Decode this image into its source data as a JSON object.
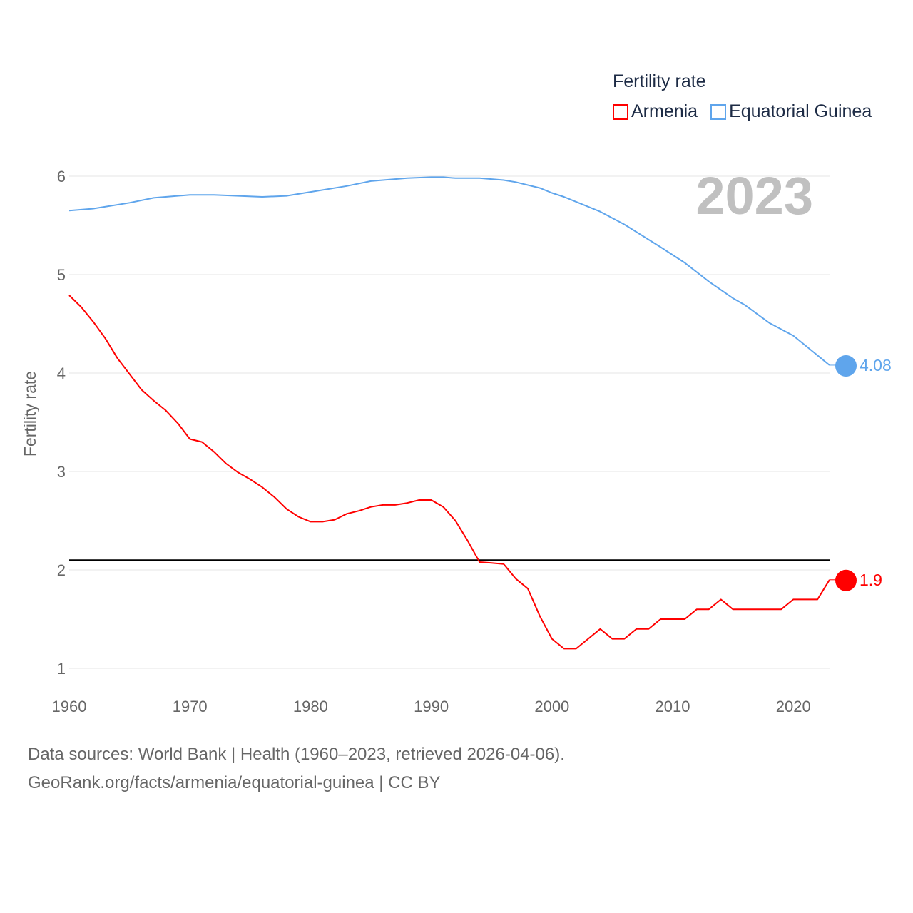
{
  "chart_data": {
    "type": "line",
    "title": "Fertility rate",
    "ylabel": "Fertility rate",
    "xlabel": "",
    "year_label": "2023",
    "xlim": [
      1960,
      2023
    ],
    "ylim": [
      1,
      6
    ],
    "x_ticks": [
      1960,
      1970,
      1980,
      1990,
      2000,
      2010,
      2020
    ],
    "y_ticks": [
      1,
      2,
      3,
      4,
      5,
      6
    ],
    "grid": true,
    "legend_position": "top-right",
    "reference_line": {
      "y": 2.1,
      "color": "#000000"
    },
    "series": [
      {
        "name": "Armenia",
        "color": "#ff0000",
        "end_label": "1.9",
        "x": [
          1960,
          1961,
          1962,
          1963,
          1964,
          1965,
          1966,
          1967,
          1968,
          1969,
          1970,
          1971,
          1972,
          1973,
          1974,
          1975,
          1976,
          1977,
          1978,
          1979,
          1980,
          1981,
          1982,
          1983,
          1984,
          1985,
          1986,
          1987,
          1988,
          1989,
          1990,
          1991,
          1992,
          1993,
          1994,
          1995,
          1996,
          1997,
          1998,
          1999,
          2000,
          2001,
          2002,
          2003,
          2004,
          2005,
          2006,
          2007,
          2008,
          2009,
          2010,
          2011,
          2012,
          2013,
          2014,
          2015,
          2016,
          2017,
          2018,
          2019,
          2020,
          2021,
          2022,
          2023
        ],
        "values": [
          4.79,
          4.67,
          4.52,
          4.35,
          4.15,
          3.99,
          3.83,
          3.72,
          3.62,
          3.49,
          3.33,
          3.3,
          3.2,
          3.08,
          2.99,
          2.92,
          2.84,
          2.74,
          2.62,
          2.54,
          2.49,
          2.49,
          2.51,
          2.57,
          2.6,
          2.64,
          2.66,
          2.66,
          2.68,
          2.71,
          2.71,
          2.64,
          2.5,
          2.3,
          2.08,
          2.07,
          2.06,
          1.91,
          1.81,
          1.53,
          1.3,
          1.2,
          1.2,
          1.3,
          1.4,
          1.3,
          1.3,
          1.4,
          1.4,
          1.5,
          1.5,
          1.5,
          1.6,
          1.6,
          1.7,
          1.6,
          1.6,
          1.6,
          1.6,
          1.6,
          1.7,
          1.7,
          1.7,
          1.9
        ]
      },
      {
        "name": "Equatorial Guinea",
        "color": "#5fa5ec",
        "end_label": "4.08",
        "x": [
          1960,
          1962,
          1965,
          1967,
          1970,
          1972,
          1974,
          1976,
          1978,
          1980,
          1983,
          1985,
          1988,
          1990,
          1991,
          1992,
          1994,
          1996,
          1997,
          1999,
          2000,
          2001,
          2002,
          2004,
          2006,
          2009,
          2011,
          2013,
          2015,
          2016,
          2018,
          2020,
          2021,
          2022,
          2023
        ],
        "values": [
          5.65,
          5.67,
          5.73,
          5.78,
          5.81,
          5.81,
          5.8,
          5.79,
          5.8,
          5.84,
          5.9,
          5.95,
          5.98,
          5.99,
          5.99,
          5.98,
          5.98,
          5.96,
          5.94,
          5.88,
          5.83,
          5.79,
          5.74,
          5.64,
          5.51,
          5.28,
          5.12,
          4.93,
          4.76,
          4.69,
          4.51,
          4.38,
          4.28,
          4.18,
          4.08
        ]
      }
    ]
  },
  "footer": {
    "line1": "Data sources: World Bank | Health (1960–2023, retrieved 2026-04-06).",
    "line2": "GeoRank.org/facts/armenia/equatorial-guinea | CC BY"
  }
}
